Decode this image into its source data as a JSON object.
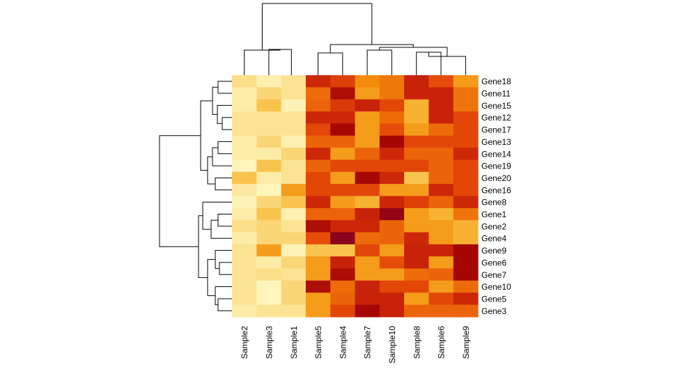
{
  "chart_data": {
    "type": "heatmap",
    "title": "",
    "colormap": "heat",
    "columns": [
      "Sample2",
      "Sample3",
      "Sample1",
      "Sample5",
      "Sample4",
      "Sample7",
      "Sample10",
      "Sample8",
      "Sample6",
      "Sample9"
    ],
    "rows": [
      "Gene18",
      "Gene11",
      "Gene15",
      "Gene12",
      "Gene17",
      "Gene13",
      "Gene14",
      "Gene19",
      "Gene20",
      "Gene16",
      "Gene8",
      "Gene1",
      "Gene2",
      "Gene4",
      "Gene9",
      "Gene6",
      "Gene7",
      "Gene10",
      "Gene5",
      "Gene3"
    ],
    "values": [
      [
        0.22,
        0.12,
        0.2,
        0.78,
        0.7,
        0.5,
        0.55,
        0.8,
        0.66,
        0.45
      ],
      [
        0.15,
        0.25,
        0.2,
        0.58,
        0.88,
        0.45,
        0.55,
        0.8,
        0.8,
        0.56
      ],
      [
        0.15,
        0.32,
        0.1,
        0.6,
        0.72,
        0.8,
        0.68,
        0.38,
        0.8,
        0.56
      ],
      [
        0.2,
        0.2,
        0.2,
        0.78,
        0.78,
        0.45,
        0.58,
        0.38,
        0.8,
        0.68
      ],
      [
        0.2,
        0.2,
        0.2,
        0.68,
        0.9,
        0.45,
        0.66,
        0.45,
        0.58,
        0.68
      ],
      [
        0.15,
        0.25,
        0.12,
        0.6,
        0.6,
        0.45,
        0.9,
        0.68,
        0.68,
        0.68
      ],
      [
        0.15,
        0.15,
        0.25,
        0.78,
        0.45,
        0.6,
        0.78,
        0.6,
        0.6,
        0.78
      ],
      [
        0.08,
        0.32,
        0.2,
        0.6,
        0.68,
        0.68,
        0.68,
        0.68,
        0.6,
        0.68
      ],
      [
        0.32,
        0.15,
        0.2,
        0.68,
        0.45,
        0.9,
        0.78,
        0.32,
        0.6,
        0.68
      ],
      [
        0.18,
        0.08,
        0.45,
        0.68,
        0.68,
        0.68,
        0.45,
        0.45,
        0.78,
        0.68
      ],
      [
        0.1,
        0.25,
        0.32,
        0.78,
        0.45,
        0.38,
        0.78,
        0.7,
        0.6,
        0.78
      ],
      [
        0.15,
        0.32,
        0.12,
        0.6,
        0.6,
        0.8,
        0.95,
        0.45,
        0.38,
        0.56
      ],
      [
        0.22,
        0.25,
        0.2,
        0.88,
        0.78,
        0.78,
        0.6,
        0.45,
        0.45,
        0.38
      ],
      [
        0.15,
        0.25,
        0.25,
        0.66,
        0.97,
        0.58,
        0.6,
        0.78,
        0.45,
        0.38
      ],
      [
        0.2,
        0.45,
        0.1,
        0.32,
        0.32,
        0.68,
        0.45,
        0.8,
        0.8,
        0.9
      ],
      [
        0.2,
        0.15,
        0.25,
        0.45,
        0.8,
        0.45,
        0.66,
        0.8,
        0.45,
        0.9
      ],
      [
        0.2,
        0.22,
        0.2,
        0.45,
        0.88,
        0.45,
        0.45,
        0.58,
        0.6,
        0.9
      ],
      [
        0.2,
        0.08,
        0.25,
        0.88,
        0.58,
        0.8,
        0.68,
        0.68,
        0.45,
        0.58
      ],
      [
        0.2,
        0.08,
        0.25,
        0.45,
        0.6,
        0.8,
        0.8,
        0.45,
        0.68,
        0.78
      ],
      [
        0.15,
        0.2,
        0.2,
        0.45,
        0.68,
        0.9,
        0.8,
        0.6,
        0.6,
        0.6
      ]
    ],
    "value_range": [
      0,
      1
    ],
    "row_dendrogram": true,
    "column_dendrogram": true,
    "legend": "none"
  }
}
